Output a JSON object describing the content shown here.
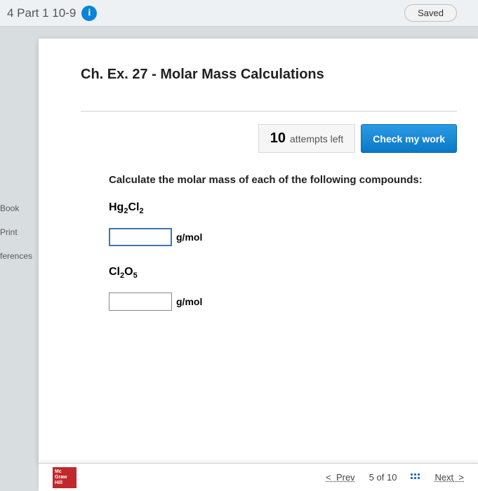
{
  "header": {
    "title": "4 Part 1 10-9",
    "saved_label": "Saved"
  },
  "chapter": {
    "title": "Ch. Ex. 27 - Molar Mass Calculations"
  },
  "attempts": {
    "count": "10",
    "label": "attempts left",
    "check_label": "Check my work"
  },
  "question": {
    "prompt": "Calculate the molar mass of each of the following compounds:",
    "compounds": [
      {
        "formula_html": "Hg₂Cl₂",
        "unit": "g/mol",
        "value": ""
      },
      {
        "formula_html": "Cl₂O₅",
        "unit": "g/mol",
        "value": ""
      }
    ]
  },
  "sidenav": {
    "items": [
      "Book",
      "Print",
      "ferences"
    ]
  },
  "footer": {
    "logo_lines": [
      "Mc",
      "Graw",
      "Hill"
    ],
    "prev": "Prev",
    "position": "5 of 10",
    "next": "Next"
  }
}
